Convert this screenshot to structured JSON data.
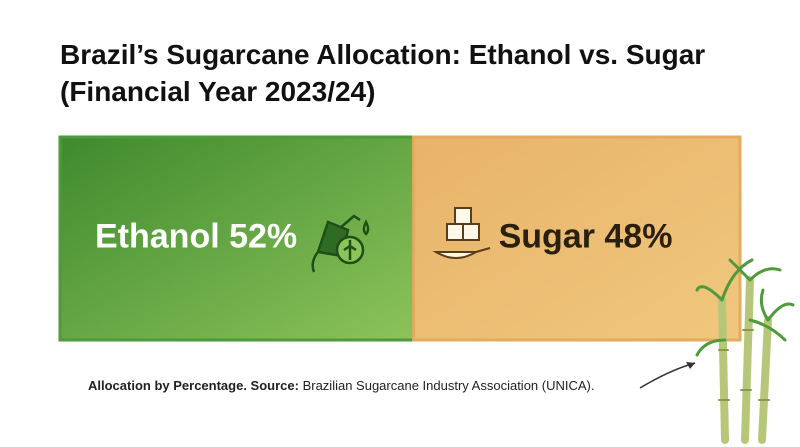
{
  "chart_data": {
    "type": "stacked_bar",
    "title": "Brazil’s Sugarcane Allocation: Ethanol vs. Sugar (Financial Year 2023/24)",
    "series": [
      {
        "name": "Ethanol",
        "color": "#4f9a3a",
        "values": [
          52
        ],
        "value_labels": [
          "Ethanol 52%"
        ]
      },
      {
        "name": "Sugar",
        "color": "#e2ab5e",
        "values": [
          48
        ],
        "value_labels": [
          "Sugar 48%"
        ]
      }
    ],
    "caption": {
      "label": "Allocation by Percentage. Source:",
      "text": "Brazilian Sugarcane Industry Association (UNICA)."
    }
  }
}
